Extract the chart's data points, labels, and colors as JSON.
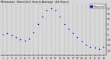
{
  "title": "Milwaukee  Wind Chill  Hourly Average  (24 Hours)",
  "hours": [
    1,
    2,
    3,
    4,
    5,
    6,
    7,
    8,
    9,
    10,
    11,
    12,
    13,
    14,
    15,
    16,
    17,
    18,
    19,
    20,
    21,
    22,
    23,
    24
  ],
  "wind_chill": [
    -5,
    -4,
    -6,
    -8,
    -10,
    -11,
    -9,
    -3,
    5,
    12,
    18,
    20,
    18,
    12,
    5,
    0,
    -4,
    -8,
    -12,
    -15,
    -17,
    -18,
    -19,
    -17
  ],
  "dot_color": "#0000ff",
  "bg_color": "#d8d8d8",
  "plot_bg": "#d8d8d8",
  "grid_color": "#888888",
  "ylim": [
    -25,
    25
  ],
  "ytick_vals": [
    -20,
    -15,
    -10,
    -5,
    0,
    5,
    10,
    15,
    20
  ],
  "ytick_labels": [
    "-20",
    "-15",
    "-10",
    "-5",
    "0",
    "5",
    "10",
    "15",
    "20"
  ],
  "legend_color": "#0000dd",
  "legend_label": "Wind Chill",
  "dot_size": 1.5,
  "title_fontsize": 2.8,
  "tick_fontsize": 2.2
}
